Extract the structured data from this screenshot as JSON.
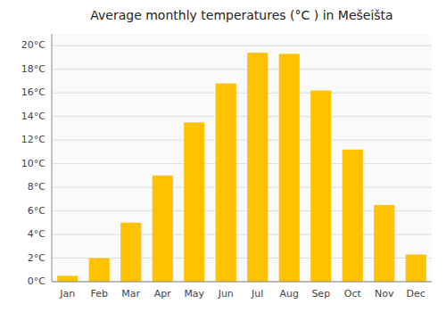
{
  "chart_data": {
    "type": "bar",
    "title": "Average monthly temperatures (°C ) in Mešeišta",
    "categories": [
      "Jan",
      "Feb",
      "Mar",
      "Apr",
      "May",
      "Jun",
      "Jul",
      "Aug",
      "Sep",
      "Oct",
      "Nov",
      "Dec"
    ],
    "values": [
      0.5,
      2.0,
      5.0,
      9.0,
      13.5,
      16.8,
      19.4,
      19.3,
      16.2,
      11.2,
      6.5,
      2.3
    ],
    "color": "#FFC200",
    "ylim": [
      0,
      21
    ],
    "yticks": [
      {
        "value": 0,
        "label": "0°C"
      },
      {
        "value": 2,
        "label": "2°C"
      },
      {
        "value": 4,
        "label": "4°C"
      },
      {
        "value": 6,
        "label": "6°C"
      },
      {
        "value": 8,
        "label": "8°C"
      },
      {
        "value": 10,
        "label": "10°C"
      },
      {
        "value": 12,
        "label": "12°C"
      },
      {
        "value": 14,
        "label": "14°C"
      },
      {
        "value": 16,
        "label": "16°C"
      },
      {
        "value": 18,
        "label": "18°C"
      },
      {
        "value": 20,
        "label": "20°C"
      }
    ],
    "grid": true
  }
}
